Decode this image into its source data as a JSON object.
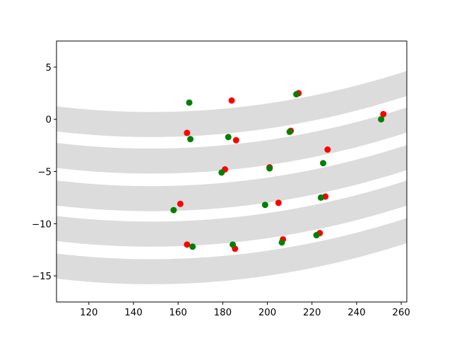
{
  "chart_data": {
    "type": "scatter",
    "title": "",
    "xlabel": "",
    "ylabel": "",
    "xlim": [
      105.5,
      262.5
    ],
    "ylim": [
      -17.5,
      7.5
    ],
    "xticks": [
      120,
      140,
      160,
      180,
      200,
      220,
      240,
      260
    ],
    "yticks": [
      5,
      0,
      -5,
      -10,
      -15
    ],
    "grid": false,
    "legend": "none",
    "bands": {
      "color": "#dcdcdc",
      "center_x": 148,
      "curvature": 0.0003,
      "half_width": 1.2,
      "centers_at_vertex": [
        -0.5,
        -4.0,
        -7.6,
        -11.0,
        -14.6
      ]
    },
    "series": [
      {
        "color": "#ff0000",
        "points": [
          [
            164,
            -1.3
          ],
          [
            184,
            1.8
          ],
          [
            186,
            -2.0
          ],
          [
            210.5,
            -1.1
          ],
          [
            214,
            2.5
          ],
          [
            252,
            0.5
          ],
          [
            181,
            -4.8
          ],
          [
            201,
            -4.6
          ],
          [
            227,
            -2.9
          ],
          [
            161,
            -8.1
          ],
          [
            205,
            -8.0
          ],
          [
            226,
            -7.4
          ],
          [
            164,
            -12.0
          ],
          [
            185.5,
            -12.4
          ],
          [
            207,
            -11.5
          ],
          [
            223.5,
            -10.9
          ]
        ]
      },
      {
        "color": "#008000",
        "points": [
          [
            165,
            1.6
          ],
          [
            165.5,
            -1.9
          ],
          [
            182.5,
            -1.7
          ],
          [
            210,
            -1.2
          ],
          [
            213,
            2.4
          ],
          [
            251,
            0.0
          ],
          [
            179.5,
            -5.1
          ],
          [
            201,
            -4.7
          ],
          [
            225,
            -4.2
          ],
          [
            158,
            -8.7
          ],
          [
            199,
            -8.2
          ],
          [
            224,
            -7.5
          ],
          [
            166.5,
            -12.2
          ],
          [
            184.5,
            -12.0
          ],
          [
            206.5,
            -11.8
          ],
          [
            222,
            -11.1
          ]
        ]
      }
    ]
  }
}
